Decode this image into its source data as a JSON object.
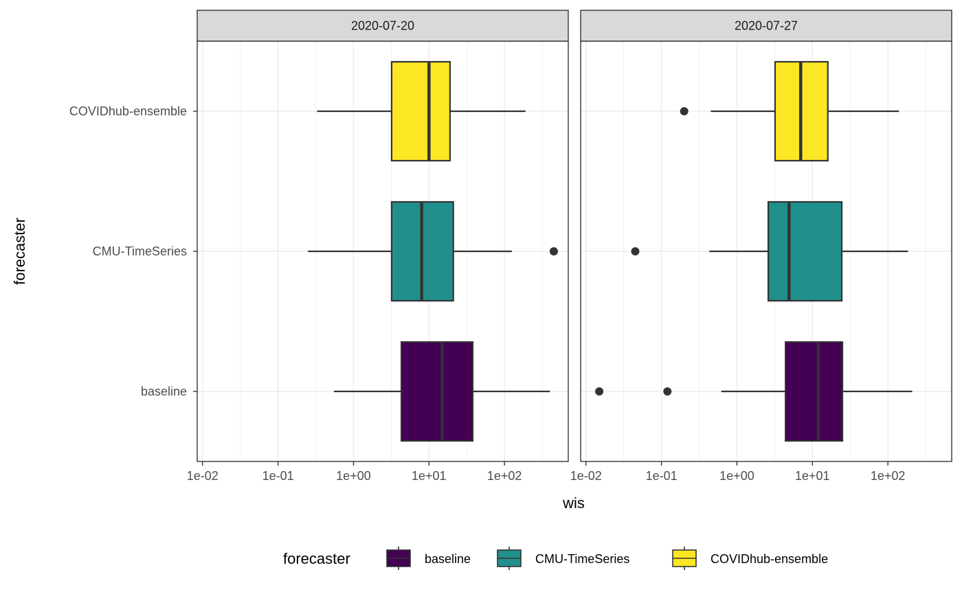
{
  "chart_data": {
    "type": "boxplot",
    "orientation": "horizontal",
    "x_scale": "log10",
    "xlabel": "wis",
    "ylabel": "forecaster",
    "xlim": [
      0.0085,
      700
    ],
    "x_ticks": [
      0.01,
      0.1,
      1,
      10,
      100
    ],
    "x_tick_labels": [
      "1e-02",
      "1e-01",
      "1e+00",
      "1e+01",
      "1e+02"
    ],
    "categories": [
      "COVIDhub-ensemble",
      "CMU-TimeSeries",
      "baseline"
    ],
    "grid": true,
    "legend": {
      "title": "forecaster",
      "position": "bottom",
      "items": [
        {
          "label": "baseline",
          "color": "#440154"
        },
        {
          "label": "CMU-TimeSeries",
          "color": "#21908C"
        },
        {
          "label": "COVIDhub-ensemble",
          "color": "#FDE725"
        }
      ]
    },
    "facets": [
      {
        "label": "2020-07-20",
        "boxes": [
          {
            "forecaster": "COVIDhub-ensemble",
            "whisker_low": 0.33,
            "q1": 3.2,
            "median": 10,
            "q3": 19,
            "whisker_high": 190,
            "outliers": []
          },
          {
            "forecaster": "CMU-TimeSeries",
            "whisker_low": 0.25,
            "q1": 3.2,
            "median": 8,
            "q3": 21,
            "whisker_high": 125,
            "outliers": [
              450
            ]
          },
          {
            "forecaster": "baseline",
            "whisker_low": 0.55,
            "q1": 4.3,
            "median": 15,
            "q3": 38,
            "whisker_high": 400,
            "outliers": []
          }
        ]
      },
      {
        "label": "2020-07-27",
        "boxes": [
          {
            "forecaster": "COVIDhub-ensemble",
            "whisker_low": 0.45,
            "q1": 3.2,
            "median": 7,
            "q3": 16,
            "whisker_high": 140,
            "outliers": [
              0.2
            ]
          },
          {
            "forecaster": "CMU-TimeSeries",
            "whisker_low": 0.43,
            "q1": 2.6,
            "median": 4.9,
            "q3": 24.5,
            "whisker_high": 185,
            "outliers": [
              0.045
            ]
          },
          {
            "forecaster": "baseline",
            "whisker_low": 0.62,
            "q1": 4.4,
            "median": 12,
            "q3": 25,
            "whisker_high": 210,
            "outliers": [
              0.015,
              0.12
            ]
          }
        ]
      }
    ]
  }
}
